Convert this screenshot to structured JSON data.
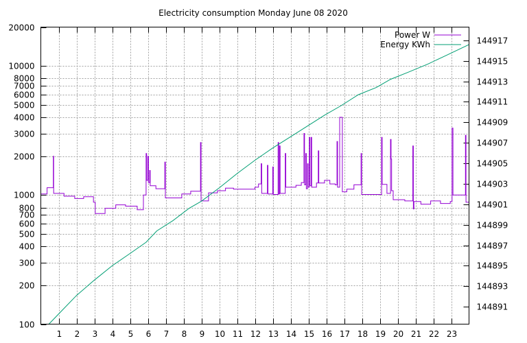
{
  "chart_data": {
    "type": "line",
    "title": "Electricity consumption Monday June 08 2020",
    "x_ticks": [
      "1",
      "2",
      "3",
      "4",
      "5",
      "6",
      "7",
      "8",
      "9",
      "10",
      "11",
      "12",
      "13",
      "14",
      "15",
      "16",
      "17",
      "18",
      "19",
      "20",
      "21",
      "22",
      "23"
    ],
    "xlim": [
      0,
      24
    ],
    "y_left": {
      "scale": "log",
      "lim": [
        100,
        20000
      ],
      "tick_labels": [
        "100",
        "200",
        "300",
        "400",
        "500",
        "600",
        "700",
        "800",
        "1000",
        "2000",
        "3000",
        "4000",
        "5000",
        "6000",
        "7000",
        "8000",
        "10000",
        "20000"
      ]
    },
    "y_right": {
      "lim": [
        144889.3,
        144918.3
      ],
      "tick_labels": [
        "144891",
        "144893",
        "144895",
        "144897",
        "144899",
        "144901",
        "144903",
        "144905",
        "144907",
        "144909",
        "144911",
        "144913",
        "144915",
        "144917"
      ]
    },
    "grid": true,
    "legend_position": "top-right",
    "colors": {
      "power": "#9400D3",
      "energy": "#009E73"
    },
    "series": [
      {
        "name": "Power W",
        "axis": "left",
        "points": [
          [
            0,
            1020
          ],
          [
            0.35,
            1020
          ],
          [
            0.35,
            1140
          ],
          [
            0.7,
            1140
          ],
          [
            0.7,
            2000
          ],
          [
            0.72,
            2000
          ],
          [
            0.72,
            1030
          ],
          [
            1.3,
            1030
          ],
          [
            1.3,
            980
          ],
          [
            1.9,
            980
          ],
          [
            1.9,
            940
          ],
          [
            2.4,
            940
          ],
          [
            2.4,
            970
          ],
          [
            2.95,
            970
          ],
          [
            2.95,
            880
          ],
          [
            3.05,
            880
          ],
          [
            3.05,
            720
          ],
          [
            3.6,
            720
          ],
          [
            3.6,
            790
          ],
          [
            4.2,
            790
          ],
          [
            4.2,
            840
          ],
          [
            4.75,
            840
          ],
          [
            4.75,
            820
          ],
          [
            5.4,
            820
          ],
          [
            5.4,
            770
          ],
          [
            5.75,
            770
          ],
          [
            5.75,
            1000
          ],
          [
            5.9,
            1000
          ],
          [
            5.9,
            2100
          ],
          [
            5.93,
            2100
          ],
          [
            5.93,
            1300
          ],
          [
            6.0,
            1300
          ],
          [
            6.0,
            2000
          ],
          [
            6.03,
            2000
          ],
          [
            6.03,
            1250
          ],
          [
            6.1,
            1250
          ],
          [
            6.1,
            1550
          ],
          [
            6.13,
            1550
          ],
          [
            6.13,
            1180
          ],
          [
            6.45,
            1180
          ],
          [
            6.45,
            1120
          ],
          [
            6.95,
            1120
          ],
          [
            6.95,
            1800
          ],
          [
            6.98,
            1800
          ],
          [
            6.98,
            950
          ],
          [
            7.9,
            950
          ],
          [
            7.9,
            1020
          ],
          [
            8.4,
            1020
          ],
          [
            8.4,
            1070
          ],
          [
            8.95,
            1070
          ],
          [
            8.95,
            2550
          ],
          [
            8.98,
            2550
          ],
          [
            8.98,
            900
          ],
          [
            9.4,
            900
          ],
          [
            9.4,
            1040
          ],
          [
            9.9,
            1040
          ],
          [
            9.9,
            1080
          ],
          [
            10.35,
            1080
          ],
          [
            10.35,
            1130
          ],
          [
            10.8,
            1130
          ],
          [
            10.8,
            1110
          ],
          [
            12.0,
            1110
          ],
          [
            12.0,
            1150
          ],
          [
            12.2,
            1150
          ],
          [
            12.2,
            1220
          ],
          [
            12.35,
            1220
          ],
          [
            12.35,
            1750
          ],
          [
            12.38,
            1750
          ],
          [
            12.38,
            1030
          ],
          [
            12.7,
            1030
          ],
          [
            12.7,
            1700
          ],
          [
            12.73,
            1700
          ],
          [
            12.73,
            1020
          ],
          [
            13.0,
            1020
          ],
          [
            13.0,
            1650
          ],
          [
            13.03,
            1650
          ],
          [
            13.03,
            1010
          ],
          [
            13.3,
            1010
          ],
          [
            13.3,
            2550
          ],
          [
            13.33,
            2550
          ],
          [
            13.33,
            1020
          ],
          [
            13.38,
            1020
          ],
          [
            13.38,
            2400
          ],
          [
            13.41,
            2400
          ],
          [
            13.41,
            1030
          ],
          [
            13.7,
            1030
          ],
          [
            13.7,
            2100
          ],
          [
            13.73,
            2100
          ],
          [
            13.73,
            1150
          ],
          [
            14.3,
            1150
          ],
          [
            14.3,
            1190
          ],
          [
            14.6,
            1190
          ],
          [
            14.6,
            1250
          ],
          [
            14.75,
            1250
          ],
          [
            14.75,
            3000
          ],
          [
            14.78,
            3000
          ],
          [
            14.78,
            1200
          ],
          [
            14.85,
            1200
          ],
          [
            14.85,
            2100
          ],
          [
            14.88,
            2100
          ],
          [
            14.88,
            1120
          ],
          [
            14.95,
            1120
          ],
          [
            14.95,
            1750
          ],
          [
            14.98,
            1750
          ],
          [
            14.98,
            1150
          ],
          [
            15.05,
            1150
          ],
          [
            15.05,
            2800
          ],
          [
            15.08,
            2800
          ],
          [
            15.08,
            1180
          ],
          [
            15.15,
            1180
          ],
          [
            15.15,
            2800
          ],
          [
            15.18,
            2800
          ],
          [
            15.18,
            1150
          ],
          [
            15.45,
            1150
          ],
          [
            15.45,
            1240
          ],
          [
            15.55,
            1240
          ],
          [
            15.55,
            2200
          ],
          [
            15.58,
            2200
          ],
          [
            15.58,
            1240
          ],
          [
            15.9,
            1240
          ],
          [
            15.9,
            1300
          ],
          [
            16.2,
            1300
          ],
          [
            16.2,
            1220
          ],
          [
            16.5,
            1220
          ],
          [
            16.5,
            1200
          ],
          [
            16.6,
            1200
          ],
          [
            16.6,
            2600
          ],
          [
            16.63,
            2600
          ],
          [
            16.63,
            1150
          ],
          [
            16.75,
            1150
          ],
          [
            16.75,
            4000
          ],
          [
            16.9,
            4000
          ],
          [
            16.9,
            1060
          ],
          [
            17.15,
            1060
          ],
          [
            17.15,
            1110
          ],
          [
            17.55,
            1110
          ],
          [
            17.55,
            1200
          ],
          [
            17.95,
            1200
          ],
          [
            17.95,
            2100
          ],
          [
            17.98,
            2100
          ],
          [
            17.98,
            1010
          ],
          [
            19.1,
            1010
          ],
          [
            19.1,
            2800
          ],
          [
            19.13,
            2800
          ],
          [
            19.13,
            1210
          ],
          [
            19.4,
            1210
          ],
          [
            19.4,
            1030
          ],
          [
            19.6,
            1030
          ],
          [
            19.6,
            2700
          ],
          [
            19.63,
            2700
          ],
          [
            19.63,
            1900
          ],
          [
            19.66,
            1900
          ],
          [
            19.66,
            1080
          ],
          [
            19.75,
            1080
          ],
          [
            19.75,
            920
          ],
          [
            20.4,
            920
          ],
          [
            20.4,
            900
          ],
          [
            20.85,
            900
          ],
          [
            20.85,
            2400
          ],
          [
            20.88,
            2400
          ],
          [
            20.88,
            780
          ],
          [
            20.91,
            780
          ],
          [
            20.91,
            890
          ],
          [
            21.3,
            890
          ],
          [
            21.3,
            850
          ],
          [
            21.85,
            850
          ],
          [
            21.85,
            900
          ],
          [
            22.4,
            900
          ],
          [
            22.4,
            860
          ],
          [
            22.95,
            860
          ],
          [
            22.95,
            890
          ],
          [
            23.05,
            890
          ],
          [
            23.05,
            3300
          ],
          [
            23.1,
            3300
          ],
          [
            23.1,
            1000
          ],
          [
            23.8,
            1000
          ],
          [
            23.8,
            2900
          ],
          [
            23.83,
            2900
          ],
          [
            23.83,
            880
          ],
          [
            24,
            880
          ]
        ]
      },
      {
        "name": "Energy KWh",
        "axis": "right",
        "points": [
          [
            0.45,
            144889.3
          ],
          [
            1,
            144890.3
          ],
          [
            2,
            144892.1
          ],
          [
            3,
            144893.6
          ],
          [
            4,
            144895.0
          ],
          [
            5,
            144896.2
          ],
          [
            5.9,
            144897.3
          ],
          [
            6.5,
            144898.4
          ],
          [
            7.4,
            144899.4
          ],
          [
            8.3,
            144900.6
          ],
          [
            9.0,
            144901.3
          ],
          [
            10.0,
            144902.6
          ],
          [
            11.0,
            144904.0
          ],
          [
            12.0,
            144905.3
          ],
          [
            13.0,
            144906.5
          ],
          [
            14.0,
            144907.6
          ],
          [
            15.0,
            144908.7
          ],
          [
            15.9,
            144909.7
          ],
          [
            16.8,
            144910.6
          ],
          [
            17.8,
            144911.7
          ],
          [
            18.8,
            144912.4
          ],
          [
            19.6,
            144913.2
          ],
          [
            20.6,
            144913.9
          ],
          [
            21.7,
            144914.7
          ],
          [
            22.8,
            144915.6
          ],
          [
            24,
            144916.6
          ]
        ]
      }
    ]
  }
}
